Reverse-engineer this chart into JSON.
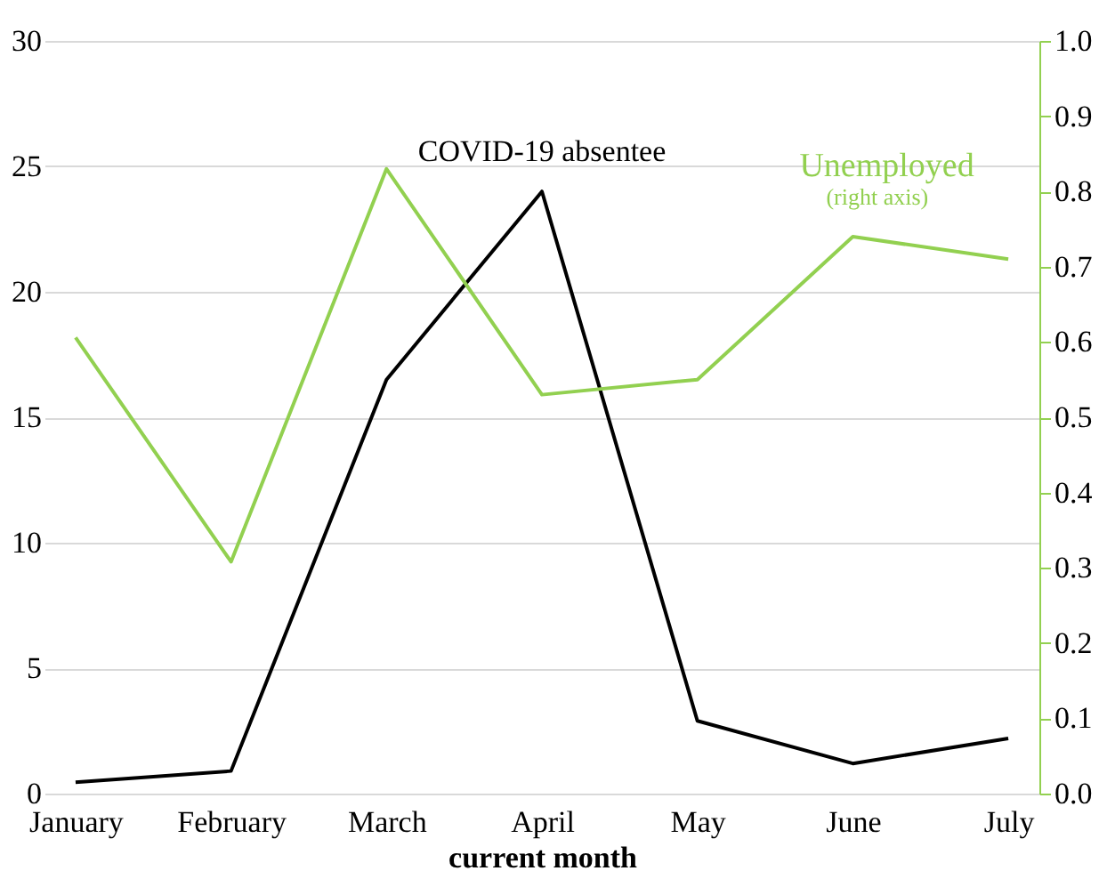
{
  "chart_data": {
    "type": "line",
    "xlabel": "current month",
    "categories": [
      "January",
      "February",
      "March",
      "April",
      "May",
      "June",
      "July"
    ],
    "series": [
      {
        "name": "COVID-19 absentee",
        "color": "#000000",
        "values": [
          0.45,
          0.9,
          16.5,
          24,
          2.9,
          1.2,
          2.2
        ]
      },
      {
        "name": "Unemployed",
        "color": "#92d050",
        "axis": "y2",
        "values": [
          0.606,
          0.308,
          0.83,
          0.53,
          0.55,
          0.74,
          0.71
        ]
      }
    ],
    "annotations": [
      "(right axis)"
    ],
    "ylim": [
      0,
      30
    ],
    "yticks": [
      0,
      5,
      10,
      15,
      20,
      25,
      30
    ],
    "y2lim": [
      0,
      1
    ],
    "y2ticks": [
      {
        "value": 0,
        "label": "0.0"
      },
      0.1,
      0.2,
      0.3,
      0.4,
      0.5,
      0.6,
      0.7,
      0.8,
      0.9,
      {
        "value": 1,
        "label": "1.0"
      }
    ],
    "grid": "y",
    "marker": "none",
    "line_style": "solid"
  }
}
